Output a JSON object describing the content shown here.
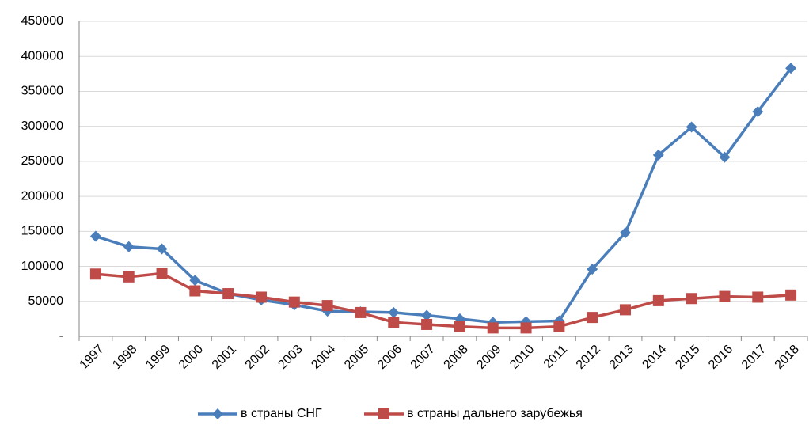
{
  "chart_data": {
    "type": "line",
    "categories": [
      "1997",
      "1998",
      "1999",
      "2000",
      "2001",
      "2002",
      "2003",
      "2004",
      "2005",
      "2006",
      "2007",
      "2008",
      "2009",
      "2010",
      "2011",
      "2012",
      "2013",
      "2014",
      "2015",
      "2016",
      "2017",
      "2018"
    ],
    "series": [
      {
        "name": "в страны СНГ",
        "color": "#4a7ebb",
        "marker": "diamond",
        "values": [
          143000,
          128000,
          125000,
          80000,
          61000,
          52000,
          45000,
          36000,
          35000,
          34000,
          30000,
          25000,
          20000,
          21000,
          22000,
          96000,
          148000,
          259000,
          299000,
          256000,
          321000,
          383000
        ]
      },
      {
        "name": "в страны дальнего зарубежья",
        "color": "#be4b48",
        "marker": "square",
        "values": [
          89000,
          85000,
          90000,
          65000,
          61000,
          56000,
          49000,
          44000,
          34000,
          20000,
          17000,
          14000,
          12000,
          12000,
          14000,
          27000,
          38000,
          51000,
          54000,
          57000,
          56000,
          59000
        ]
      }
    ],
    "ylim": [
      0,
      450000
    ],
    "yticks": [
      {
        "value": 0,
        "label": "-"
      },
      50000,
      100000,
      150000,
      200000,
      250000,
      300000,
      350000,
      400000,
      450000
    ],
    "grid": true,
    "legend": "bottom"
  }
}
